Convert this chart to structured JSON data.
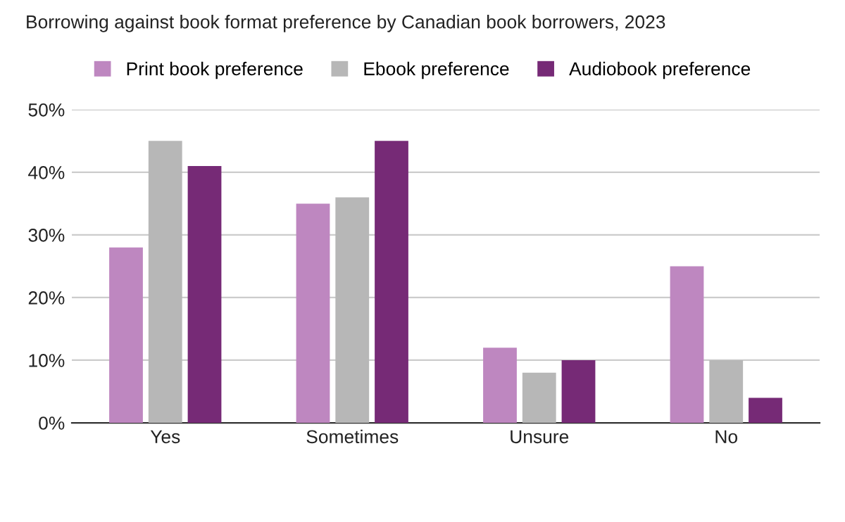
{
  "chart_data": {
    "type": "bar",
    "title": "Borrowing against book format preference by Canadian book borrowers, 2023",
    "categories": [
      "Yes",
      "Sometimes",
      "Unsure",
      "No"
    ],
    "series": [
      {
        "name": "Print book preference",
        "color": "#be87c0",
        "values": [
          28,
          35,
          12,
          25
        ]
      },
      {
        "name": "Ebook preference",
        "color": "#b7b7b7",
        "values": [
          45,
          36,
          8,
          10
        ]
      },
      {
        "name": "Audiobook preference",
        "color": "#762a76",
        "values": [
          41,
          45,
          10,
          4
        ]
      }
    ],
    "ylim": [
      0,
      50
    ],
    "yticks": [
      {
        "value": 0,
        "label": "0%"
      },
      {
        "value": 10,
        "label": "10%"
      },
      {
        "value": 20,
        "label": "20%"
      },
      {
        "value": 30,
        "label": "30%"
      },
      {
        "value": 40,
        "label": "40%"
      },
      {
        "value": 50,
        "label": "50%"
      }
    ],
    "grid": "y",
    "legend": "top"
  }
}
